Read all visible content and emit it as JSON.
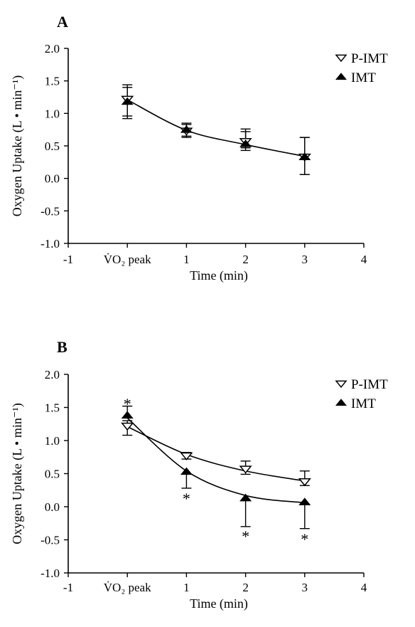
{
  "chart_data": [
    {
      "panel": "A",
      "type": "scatter",
      "xlabel": "Time (min)",
      "ylabel": "Oxygen Uptake (L • min⁻¹)",
      "xlim": [
        -1,
        4
      ],
      "ylim": [
        -1.0,
        2.0
      ],
      "xticks": [
        {
          "value": -1,
          "label": "-1"
        },
        {
          "value": 0,
          "label": "V̇O₂ peak"
        },
        {
          "value": 1,
          "label": "1"
        },
        {
          "value": 2,
          "label": "2"
        },
        {
          "value": 3,
          "label": "3"
        },
        {
          "value": 4,
          "label": "4"
        }
      ],
      "yticks": [
        "-1.0",
        "-0.5",
        "0.0",
        "0.5",
        "1.0",
        "1.5",
        "2.0"
      ],
      "grid": false,
      "legend": "top-right",
      "series": [
        {
          "name": "P-IMT",
          "marker": "open-triangle-down",
          "x": [
            0,
            1,
            2,
            3
          ],
          "y": [
            1.22,
            0.73,
            0.57,
            0.33
          ],
          "err_plus": [
            0.22,
            0.1,
            0.19,
            0.3
          ],
          "err_minus": [
            0.26,
            0.1,
            0.1,
            0.27
          ],
          "fit": [
            1.21,
            0.74,
            0.52,
            0.34
          ]
        },
        {
          "name": "IMT",
          "marker": "filled-triangle-up",
          "x": [
            0,
            1,
            2,
            3
          ],
          "y": [
            1.18,
            0.75,
            0.53,
            0.33
          ],
          "err_plus": [
            0.22,
            0.1,
            0.19,
            0.3
          ],
          "err_minus": [
            0.26,
            0.1,
            0.1,
            0.27
          ]
        }
      ],
      "annotations": []
    },
    {
      "panel": "B",
      "type": "scatter",
      "xlabel": "Time (min)",
      "ylabel": "Oxygen Uptake (L • min⁻¹)",
      "xlim": [
        -1,
        4
      ],
      "ylim": [
        -1.0,
        2.0
      ],
      "xticks": [
        {
          "value": -1,
          "label": "-1"
        },
        {
          "value": 0,
          "label": "V̇O₂ peak"
        },
        {
          "value": 1,
          "label": "1"
        },
        {
          "value": 2,
          "label": "2"
        },
        {
          "value": 3,
          "label": "3"
        },
        {
          "value": 4,
          "label": "4"
        }
      ],
      "yticks": [
        "-1.0",
        "-0.5",
        "0.0",
        "0.5",
        "1.0",
        "1.5",
        "2.0"
      ],
      "grid": false,
      "legend": "top-right",
      "series": [
        {
          "name": "P-IMT",
          "marker": "open-triangle-down",
          "x": [
            0,
            1,
            2,
            3
          ],
          "y": [
            1.22,
            0.77,
            0.57,
            0.38
          ],
          "err_plus": [
            0.08,
            0.05,
            0.12,
            0.16
          ],
          "err_minus": [
            0.14,
            0.05,
            0.08,
            0.06
          ],
          "fit": [
            1.21,
            0.79,
            0.54,
            0.39
          ]
        },
        {
          "name": "IMT",
          "marker": "filled-triangle-up",
          "x": [
            0,
            1,
            2,
            3
          ],
          "y": [
            1.38,
            0.53,
            0.13,
            0.07
          ],
          "err_plus": [
            0.14,
            0.0,
            0.0,
            0.0
          ],
          "err_minus": [
            0.0,
            0.25,
            0.43,
            0.4
          ],
          "fit": [
            1.34,
            0.54,
            0.17,
            0.06
          ]
        }
      ],
      "annotations": [
        {
          "text": "*",
          "x": 0,
          "y": 1.6
        },
        {
          "text": "*",
          "x": 1,
          "y": 0.17
        },
        {
          "text": "*",
          "x": 2,
          "y": -0.4
        },
        {
          "text": "*",
          "x": 3,
          "y": -0.44
        }
      ]
    }
  ]
}
